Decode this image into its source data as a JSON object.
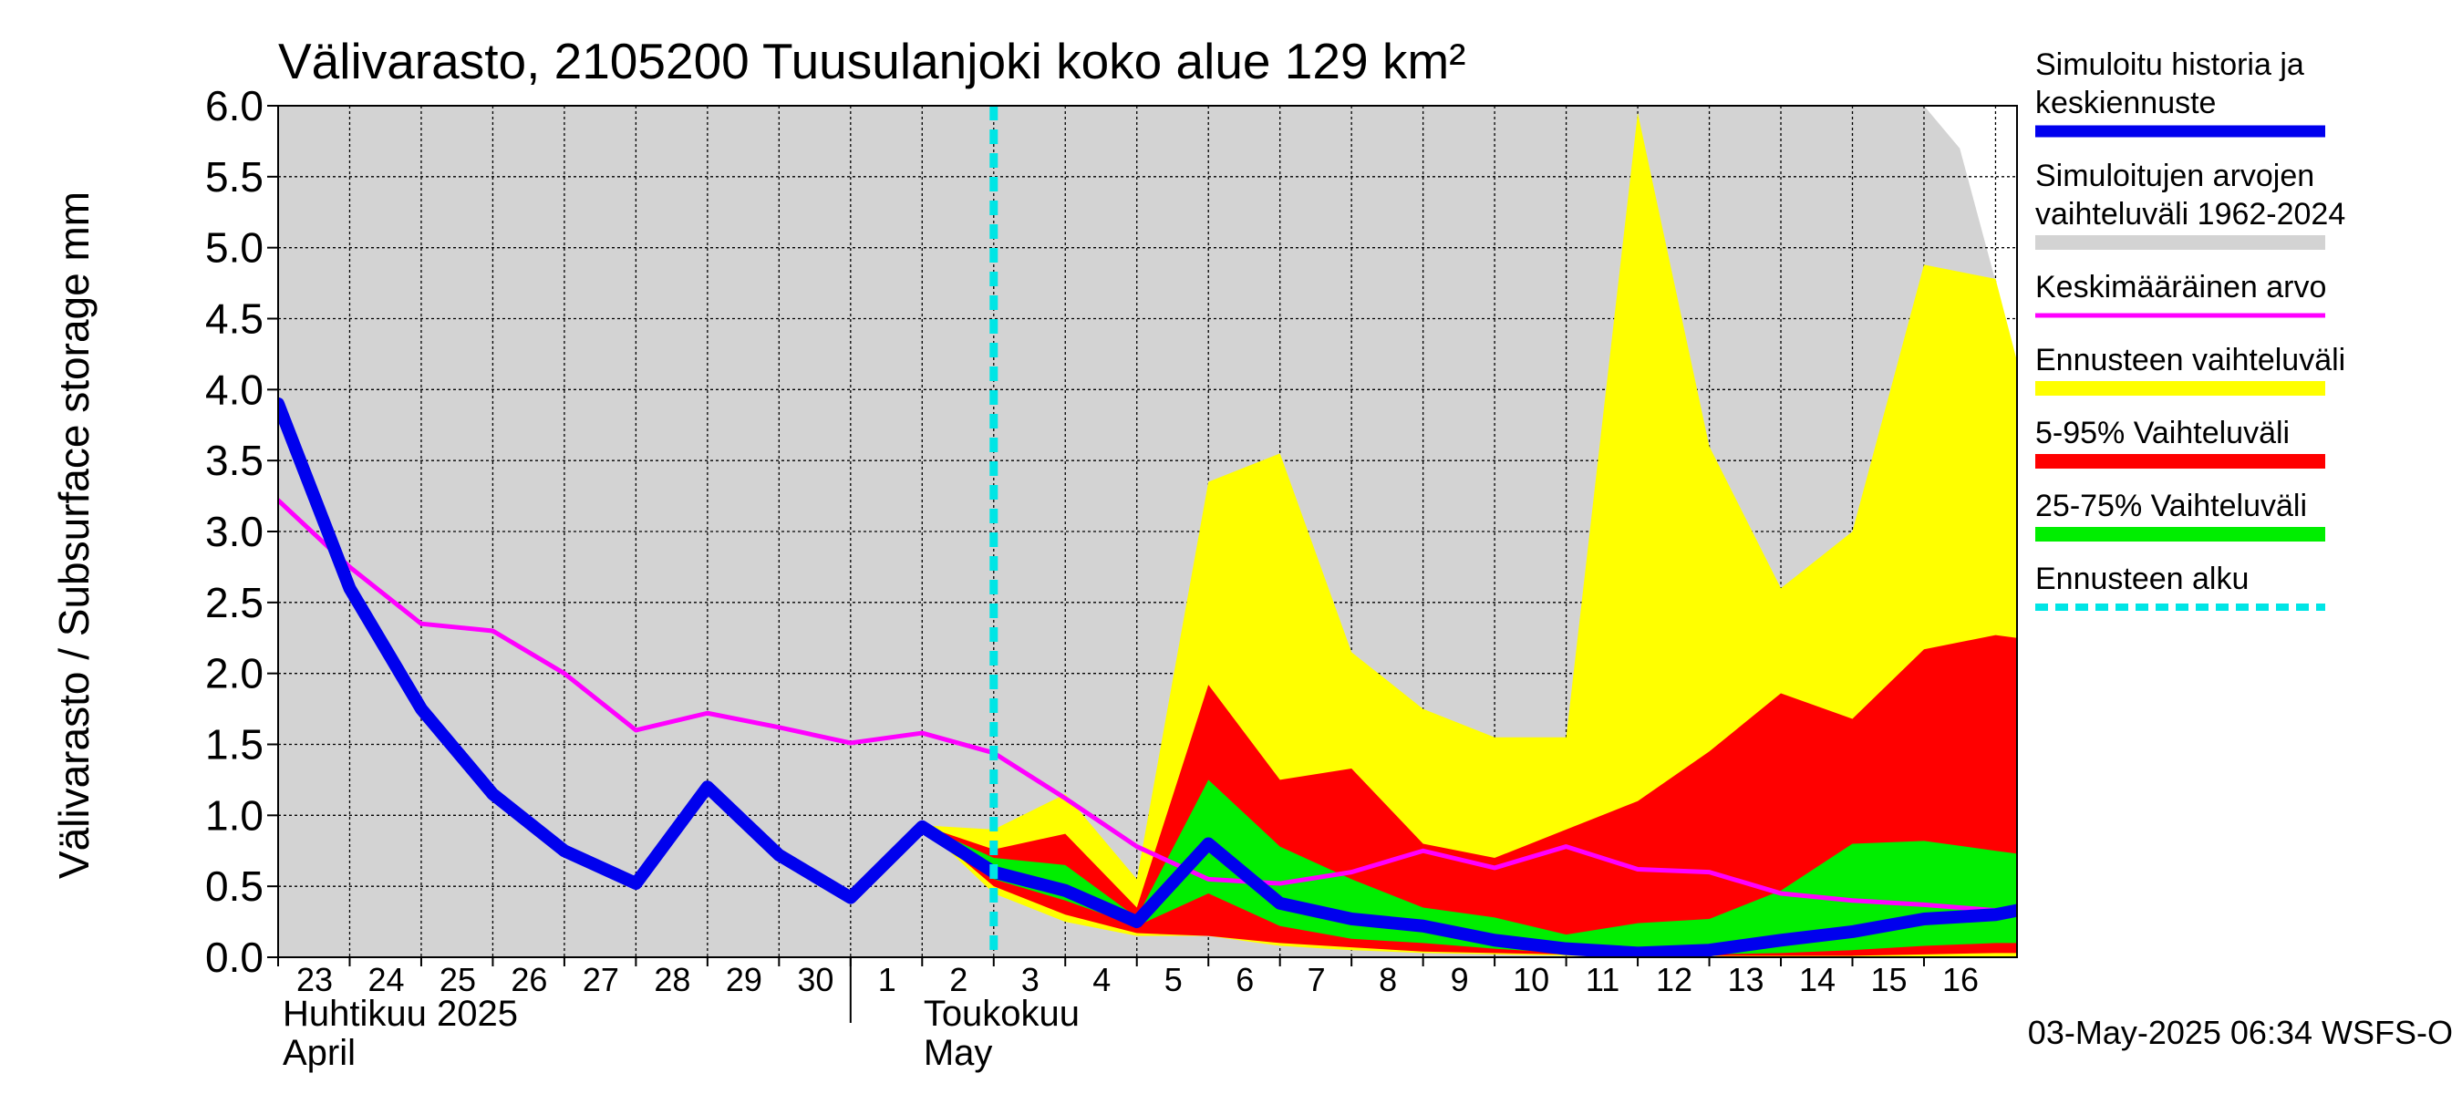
{
  "chart_data": {
    "type": "area",
    "title": "Välivarasto, 2105200 Tuusulanjoki koko alue 129 km²",
    "ylabel": "Välivarasto / Subsurface storage  mm",
    "ylim": [
      0,
      6
    ],
    "yticks": [
      "0.0",
      "0.5",
      "1.0",
      "1.5",
      "2.0",
      "2.5",
      "3.0",
      "3.5",
      "4.0",
      "4.5",
      "5.0",
      "5.5",
      "6.0"
    ],
    "ytick_values": [
      0,
      0.5,
      1,
      1.5,
      2,
      2.5,
      3,
      3.5,
      4,
      4.5,
      5,
      5.5,
      6
    ],
    "x_range": [
      0,
      24.3
    ],
    "day_labels": [
      "23",
      "24",
      "25",
      "26",
      "27",
      "28",
      "29",
      "30",
      "1",
      "2",
      "3",
      "4",
      "5",
      "6",
      "7",
      "8",
      "9",
      "10",
      "11",
      "12",
      "13",
      "14",
      "15",
      "16"
    ],
    "month_labels": [
      {
        "fi": "Huhtikuu  2025",
        "en": "April",
        "at_day": 0
      },
      {
        "fi": "Toukokuu",
        "en": "May",
        "at_day": 8
      }
    ],
    "month_boundary_day": 8,
    "forecast_start": 10,
    "grid": true,
    "legend_position": "right",
    "timestamp": "03-May-2025 06:34 WSFS-O",
    "series": [
      {
        "key": "hist_range",
        "name": "Simuloitujen arvojen vaihteluväli 1962-2024",
        "color": "#d3d3d3",
        "x": [
          0,
          1,
          2,
          3,
          4,
          5,
          6,
          7,
          8,
          9,
          10,
          11,
          12,
          13,
          14,
          15,
          16,
          17,
          18,
          19,
          20,
          21,
          22,
          23,
          23.5,
          24.3
        ],
        "upper": [
          6.0,
          6.0,
          6.0,
          6.0,
          6.0,
          6.0,
          6.0,
          6.0,
          6.0,
          6.0,
          6.0,
          6.0,
          6.0,
          6.0,
          6.0,
          6.0,
          6.0,
          6.0,
          6.0,
          6.0,
          6.0,
          6.0,
          6.0,
          6.0,
          5.7,
          4.2
        ],
        "lower": [
          0.0,
          0.0,
          0.0,
          0.0,
          0.0,
          0.0,
          0.0,
          0.0,
          0.0,
          0.0,
          0.0,
          0.0,
          0.0,
          0.0,
          0.0,
          0.0,
          0.0,
          0.0,
          0.0,
          0.0,
          0.0,
          0.0,
          0.0,
          0.0,
          0.0,
          0.0
        ]
      },
      {
        "key": "forecast_range",
        "name": "Ennusteen vaihteluväli",
        "color": "#ffff00",
        "x": [
          9,
          10,
          11,
          12,
          13,
          14,
          15,
          16,
          17,
          18,
          19,
          20,
          21,
          22,
          23,
          24,
          24.3
        ],
        "upper": [
          0.93,
          0.9,
          1.15,
          0.55,
          3.35,
          3.55,
          2.15,
          1.75,
          1.55,
          1.55,
          5.95,
          3.6,
          2.6,
          3.0,
          4.88,
          4.78,
          4.2
        ],
        "lower": [
          0.93,
          0.45,
          0.25,
          0.15,
          0.15,
          0.08,
          0.05,
          0.03,
          0.02,
          0.01,
          0.0,
          0.0,
          0.0,
          0.0,
          0.0,
          0.0,
          0.0
        ]
      },
      {
        "key": "p5_95",
        "name": "5-95% Vaihteluväli",
        "color": "#ff0000",
        "x": [
          9,
          10,
          11,
          12,
          13,
          14,
          15,
          16,
          17,
          18,
          19,
          20,
          21,
          22,
          23,
          24,
          24.3
        ],
        "upper": [
          0.93,
          0.76,
          0.87,
          0.35,
          1.92,
          1.25,
          1.33,
          0.8,
          0.7,
          0.9,
          1.1,
          1.45,
          1.86,
          1.68,
          2.17,
          2.27,
          2.25
        ],
        "lower": [
          0.93,
          0.5,
          0.3,
          0.17,
          0.15,
          0.1,
          0.07,
          0.04,
          0.03,
          0.02,
          0.01,
          0.01,
          0.01,
          0.01,
          0.02,
          0.03,
          0.03
        ]
      },
      {
        "key": "p25_75",
        "name": "25-75% Vaihteluväli",
        "color": "#00ee00",
        "x": [
          9,
          10,
          11,
          12,
          13,
          14,
          15,
          16,
          17,
          18,
          19,
          20,
          21,
          22,
          23,
          24,
          24.3
        ],
        "upper": [
          0.93,
          0.7,
          0.65,
          0.28,
          1.25,
          0.78,
          0.55,
          0.35,
          0.28,
          0.16,
          0.24,
          0.27,
          0.47,
          0.8,
          0.82,
          0.75,
          0.73
        ],
        "lower": [
          0.93,
          0.55,
          0.4,
          0.22,
          0.45,
          0.22,
          0.13,
          0.1,
          0.06,
          0.03,
          0.02,
          0.02,
          0.03,
          0.05,
          0.08,
          0.1,
          0.1
        ]
      },
      {
        "key": "mean",
        "name": "Keskimääräinen arvo",
        "color": "#ff00ff",
        "x": [
          0,
          1,
          2,
          3,
          4,
          5,
          6,
          7,
          8,
          9,
          10,
          11,
          12,
          13,
          14,
          15,
          16,
          17,
          18,
          19,
          20,
          21,
          22,
          23,
          24,
          24.3
        ],
        "values": [
          3.22,
          2.75,
          2.35,
          2.3,
          2.0,
          1.6,
          1.72,
          1.62,
          1.51,
          1.58,
          1.44,
          1.12,
          0.78,
          0.55,
          0.52,
          0.6,
          0.75,
          0.63,
          0.78,
          0.62,
          0.6,
          0.45,
          0.4,
          0.37,
          0.33,
          0.3
        ]
      },
      {
        "key": "sim",
        "name": "Simuloitu historia ja keskiennuste",
        "color": "#0000ee",
        "x": [
          0,
          1,
          2,
          3,
          4,
          5,
          6,
          7,
          8,
          9,
          10,
          11,
          12,
          13,
          14,
          15,
          16,
          17,
          18,
          19,
          20,
          21,
          22,
          23,
          24,
          24.3
        ],
        "values": [
          3.9,
          2.6,
          1.75,
          1.15,
          0.75,
          0.52,
          1.2,
          0.72,
          0.42,
          0.92,
          0.6,
          0.47,
          0.25,
          0.8,
          0.38,
          0.27,
          0.22,
          0.12,
          0.06,
          0.03,
          0.05,
          0.12,
          0.18,
          0.27,
          0.3,
          0.33
        ]
      },
      {
        "key": "forecast_start",
        "name": "Ennusteen alku",
        "color": "#00e5e5"
      }
    ]
  },
  "legend": [
    {
      "key": "sim",
      "lines": [
        "Simuloitu historia ja",
        "keskiennuste"
      ],
      "color": "#0000ee",
      "style": "thick"
    },
    {
      "key": "hist_range",
      "lines": [
        "Simuloitujen arvojen",
        "vaihteluväli 1962-2024"
      ],
      "color": "#d3d3d3",
      "style": "band"
    },
    {
      "key": "mean",
      "lines": [
        "Keskimääräinen arvo"
      ],
      "color": "#ff00ff",
      "style": "thin"
    },
    {
      "key": "forecast_range",
      "lines": [
        "Ennusteen vaihteluväli"
      ],
      "color": "#ffff00",
      "style": "band"
    },
    {
      "key": "p5_95",
      "lines": [
        "5-95% Vaihteluväli"
      ],
      "color": "#ff0000",
      "style": "band"
    },
    {
      "key": "p25_75",
      "lines": [
        "25-75% Vaihteluväli"
      ],
      "color": "#00ee00",
      "style": "band"
    },
    {
      "key": "forecast_start",
      "lines": [
        "Ennusteen alku"
      ],
      "color": "#00e5e5",
      "style": "dashed"
    }
  ]
}
